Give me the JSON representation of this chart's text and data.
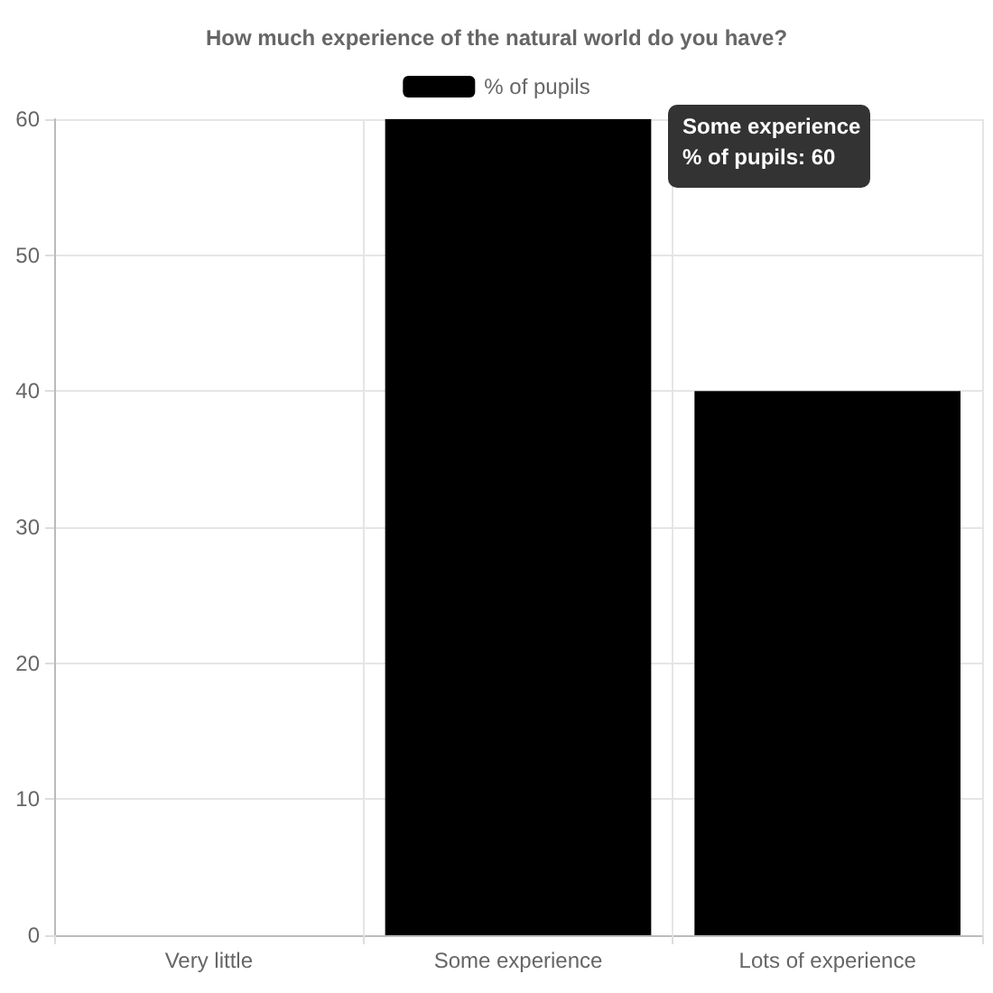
{
  "chart_data": {
    "type": "bar",
    "title": "How much experience of the natural world do you have?",
    "categories": [
      "Very little",
      "Some experience",
      "Lots of experience"
    ],
    "series": [
      {
        "name": "% of pupils",
        "color": "#000000",
        "values": [
          0,
          60,
          40
        ]
      }
    ],
    "ylim": [
      0,
      60
    ],
    "yticks": [
      0,
      10,
      20,
      30,
      40,
      50,
      60
    ],
    "grid": true,
    "legend": "top",
    "annotations": [
      "Some experience",
      "% of pupils: 60"
    ]
  }
}
